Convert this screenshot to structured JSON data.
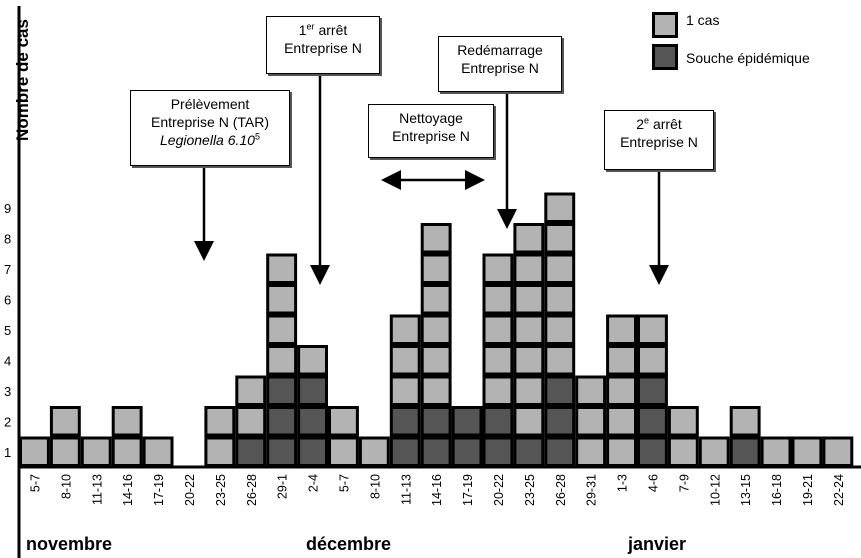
{
  "chart_data": {
    "type": "bar",
    "stacked": true,
    "ylabel": "Nombre de cas",
    "yticks": [
      1,
      2,
      3,
      4,
      5,
      6,
      7,
      8,
      9
    ],
    "categories": [
      "5-7",
      "8-10",
      "11-13",
      "14-16",
      "17-19",
      "20-22",
      "23-25",
      "26-28",
      "29-1",
      "2-4",
      "5-7",
      "8-10",
      "11-13",
      "14-16",
      "17-19",
      "20-22",
      "23-25",
      "26-28",
      "29-31",
      "1-3",
      "4-6",
      "7-9",
      "10-12",
      "13-15",
      "16-18",
      "19-21",
      "22-24"
    ],
    "series": [
      {
        "name": "Souche épidémique",
        "values": [
          0,
          0,
          0,
          0,
          0,
          0,
          0,
          1,
          3,
          3,
          0,
          0,
          2,
          2,
          2,
          2,
          1,
          3,
          0,
          0,
          3,
          0,
          0,
          1,
          0,
          0,
          0
        ]
      },
      {
        "name": "1 cas",
        "values": [
          1,
          2,
          1,
          2,
          1,
          0,
          2,
          2,
          4,
          1,
          2,
          1,
          3,
          6,
          0,
          5,
          7,
          6,
          3,
          5,
          2,
          2,
          1,
          1,
          1,
          1,
          1
        ]
      }
    ],
    "months": [
      "novembre",
      "décembre",
      "janvier"
    ],
    "legend": {
      "cas_label": "1 cas",
      "souche_label": "Souche épidémique",
      "cas_color": "#b3b3b3",
      "souche_color": "#555555"
    },
    "annotations": {
      "prelevement": {
        "line1": "Prélèvement",
        "line2": "Entreprise N (TAR)",
        "line3": "Legionella 6.10",
        "line3_sup": "5"
      },
      "arret1": {
        "line1_num": "1",
        "line1_sup": "er",
        "line1_rest": " arrêt",
        "line2": "Entreprise N"
      },
      "nettoyage": {
        "line1": "Nettoyage",
        "line2": "Entreprise N"
      },
      "redemarrage": {
        "line1": "Redémarrage",
        "line2": "Entreprise N"
      },
      "arret2": {
        "line1_num": "2",
        "line1_sup": "e",
        "line1_rest": " arrêt",
        "line2": "Entreprise N"
      }
    }
  }
}
